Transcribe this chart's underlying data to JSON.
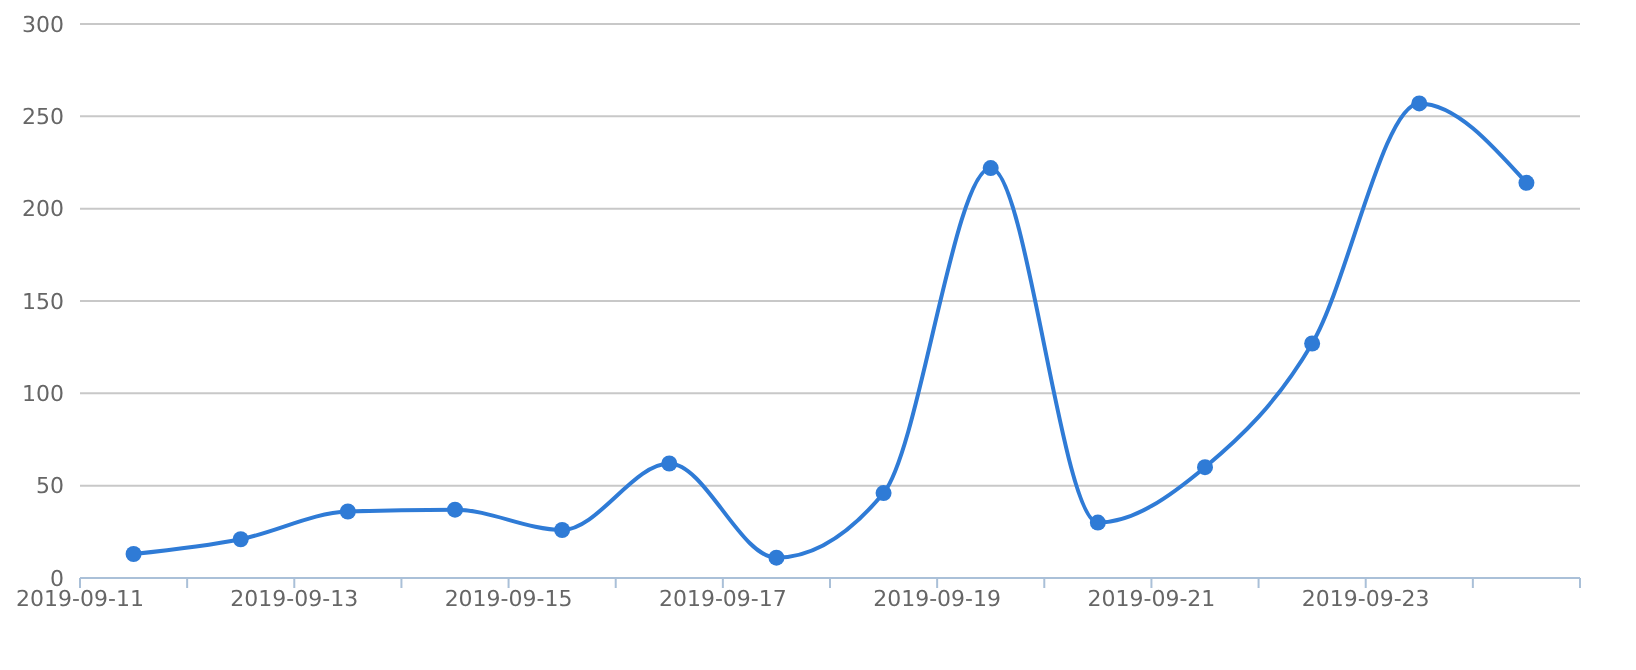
{
  "chart_data": {
    "type": "line",
    "x": [
      "2019-09-11T12:00",
      "2019-09-12T12:00",
      "2019-09-13T12:00",
      "2019-09-14T12:00",
      "2019-09-15T12:00",
      "2019-09-16T12:00",
      "2019-09-17T12:00",
      "2019-09-18T12:00",
      "2019-09-19T12:00",
      "2019-09-20T12:00",
      "2019-09-21T12:00",
      "2019-09-22T12:00",
      "2019-09-23T12:00",
      "2019-09-24T12:00"
    ],
    "series": [
      {
        "color": "#2f7bd6",
        "values": [
          13,
          21,
          36,
          37,
          26,
          62,
          11,
          46,
          222,
          30,
          60,
          127,
          257,
          214
        ]
      }
    ],
    "xlim": [
      "2019-09-11",
      "2019-09-25"
    ],
    "xticks": [
      "2019-09-11",
      {
        "value": "2019-09-12",
        "label": null
      },
      "2019-09-13",
      {
        "value": "2019-09-14",
        "label": null
      },
      "2019-09-15",
      {
        "value": "2019-09-16",
        "label": null
      },
      "2019-09-17",
      {
        "value": "2019-09-18",
        "label": null
      },
      "2019-09-19",
      {
        "value": "2019-09-20",
        "label": null
      },
      "2019-09-21",
      {
        "value": "2019-09-22",
        "label": null
      },
      "2019-09-23",
      {
        "value": "2019-09-24",
        "label": null
      },
      {
        "value": "2019-09-25",
        "label": null
      }
    ],
    "ylim": [
      0,
      300
    ],
    "yticks": [
      0,
      50,
      100,
      150,
      200,
      250,
      300
    ],
    "grid": "y",
    "marker": "circle",
    "line_style": "solid"
  }
}
